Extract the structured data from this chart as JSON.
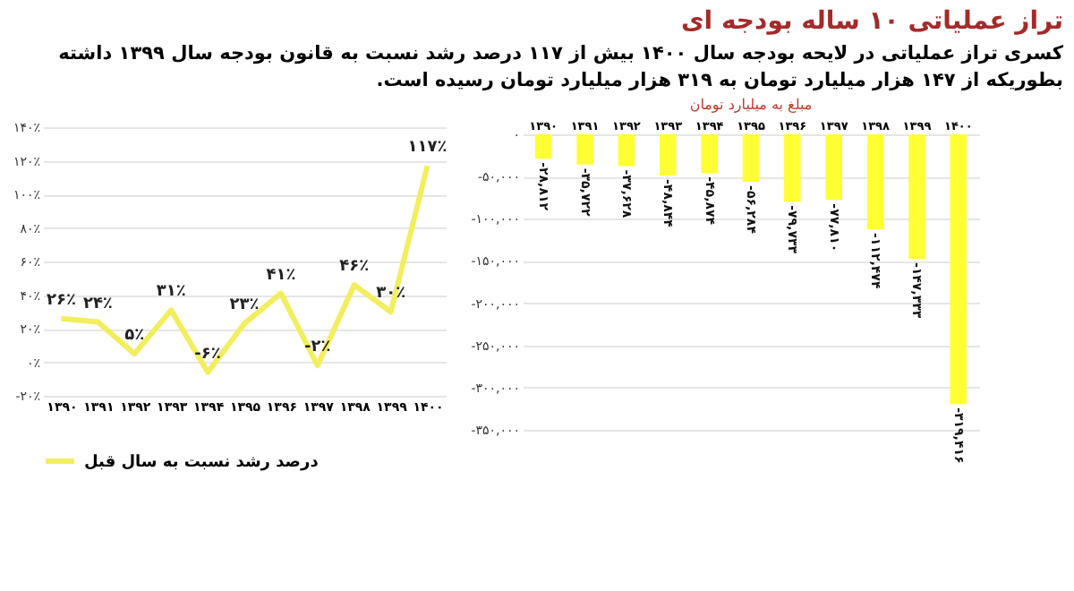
{
  "chart_data": [
    {
      "type": "other",
      "title": "تراز عملیاتی ۱۰ ساله بودجه ای",
      "subtitle": "کسری تراز عملیاتی در لایحه بودجه سال ۱۴۰۰ بیش از ۱۱۷ درصد رشد نسبت به قانون بودجه سال ۱۳۹۹ داشته بطوریکه از ۱۴۷ هزار میلیارد تومان به ۳۱۹ هزار میلیارد تومان رسیده است."
    },
    {
      "type": "line",
      "categories": [
        "۱۳۹۰",
        "۱۳۹۱",
        "۱۳۹۲",
        "۱۳۹۳",
        "۱۳۹۴",
        "۱۳۹۵",
        "۱۳۹۶",
        "۱۳۹۷",
        "۱۳۹۸",
        "۱۳۹۹",
        "۱۴۰۰"
      ],
      "series": [
        {
          "name": "درصد رشد نسبت به سال قبل",
          "color": "#f2ee5e",
          "values": [
            26,
            24,
            5,
            31,
            -6,
            23,
            41,
            -2,
            46,
            30,
            117
          ],
          "value_labels": [
            "۲۶٪",
            "۲۴٪",
            "۵٪",
            "۳۱٪",
            "-۶٪",
            "۲۳٪",
            "۴۱٪",
            "-۲٪",
            "۴۶٪",
            "۳۰٪",
            "۱۱۷٪"
          ]
        }
      ],
      "ylim": [
        -20,
        140
      ],
      "yticks": [
        {
          "value": -20,
          "label": "-۲۰٪"
        },
        {
          "value": 0,
          "label": "۰٪"
        },
        {
          "value": 20,
          "label": "۲۰٪"
        },
        {
          "value": 40,
          "label": "۴۰٪"
        },
        {
          "value": 60,
          "label": "۶۰٪"
        },
        {
          "value": 80,
          "label": "۸۰٪"
        },
        {
          "value": 100,
          "label": "۱۰۰٪"
        },
        {
          "value": 120,
          "label": "۱۲۰٪"
        },
        {
          "value": 140,
          "label": "۱۴۰٪"
        }
      ],
      "grid": "y",
      "legend": "bottom"
    },
    {
      "type": "bar",
      "title": "مبلغ به میلیارد تومان",
      "categories": [
        "۱۳۹۰",
        "۱۳۹۱",
        "۱۳۹۲",
        "۱۳۹۳",
        "۱۳۹۴",
        "۱۳۹۵",
        "۱۳۹۶",
        "۱۳۹۷",
        "۱۳۹۸",
        "۱۳۹۹",
        "۱۴۰۰"
      ],
      "values": [
        -28812,
        -35722,
        -37628,
        -48844,
        -45874,
        -56284,
        -79733,
        -77810,
        -112474,
        -147333,
        -319416
      ],
      "value_labels": [
        "-۲۸,۸۱۲",
        "-۳۵,۷۲۲",
        "-۳۷,۶۲۸",
        "-۴۸,۸۴۴",
        "-۴۵,۸۷۴",
        "-۵۶,۲۸۴",
        "-۷۹,۷۳۳",
        "-۷۷,۸۱۰",
        "-۱۱۲,۴۷۴",
        "-۱۴۷,۳۳۳",
        "-۳۱۹,۴۱۶"
      ],
      "color": "#ffff33",
      "ylim": [
        -350000,
        0
      ],
      "yticks": [
        {
          "value": -350000,
          "label": "-۳۵۰,۰۰۰"
        },
        {
          "value": -300000,
          "label": "-۳۰۰,۰۰۰"
        },
        {
          "value": -250000,
          "label": "-۲۵۰,۰۰۰"
        },
        {
          "value": -200000,
          "label": "-۲۰۰,۰۰۰"
        },
        {
          "value": -150000,
          "label": "-۱۵۰,۰۰۰"
        },
        {
          "value": -100000,
          "label": "-۱۰۰,۰۰۰"
        },
        {
          "value": -50000,
          "label": "-۵۰,۰۰۰"
        },
        {
          "value": 0,
          "label": "۰"
        }
      ],
      "grid": "y",
      "data_labels": true
    }
  ]
}
